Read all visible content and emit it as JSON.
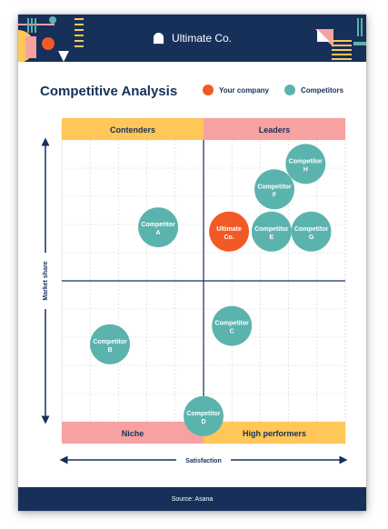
{
  "header": {
    "brand": "Ultimate Co.",
    "colors": {
      "navy": "#16305a",
      "orange": "#f15a24",
      "yellow": "#ffc658",
      "pink": "#f7a1a1",
      "teal": "#5bb3ad"
    }
  },
  "title": "Competitive Analysis",
  "legend": {
    "company_label": "Your company",
    "competitor_label": "Competitors"
  },
  "quadrants": {
    "top_left": "Contenders",
    "top_right": "Leaders",
    "bottom_left": "Niche",
    "bottom_right": "High performers"
  },
  "axes": {
    "y_label": "Market share",
    "x_label": "Satisfaction"
  },
  "bubbles": [
    {
      "id": "competitor-h",
      "line1": "Competitor",
      "line2": "H",
      "type": "competitor",
      "x": 8.6,
      "y": 8.3
    },
    {
      "id": "competitor-f",
      "line1": "Competitor",
      "line2": "F",
      "type": "competitor",
      "x": 7.5,
      "y": 6.5
    },
    {
      "id": "competitor-a",
      "line1": "Competitor",
      "line2": "A",
      "type": "competitor",
      "x": 3.4,
      "y": 3.8
    },
    {
      "id": "ultimate-co",
      "line1": "Ultimate",
      "line2": "Co.",
      "type": "company",
      "x": 5.9,
      "y": 3.5
    },
    {
      "id": "competitor-e",
      "line1": "Competitor",
      "line2": "E",
      "type": "competitor",
      "x": 7.4,
      "y": 3.5
    },
    {
      "id": "competitor-g",
      "line1": "Competitor",
      "line2": "G",
      "type": "competitor",
      "x": 8.8,
      "y": 3.5
    },
    {
      "id": "competitor-c",
      "line1": "Competitor",
      "line2": "C",
      "type": "competitor",
      "x": 6.0,
      "y": -3.2
    },
    {
      "id": "competitor-b",
      "line1": "Competitor",
      "line2": "B",
      "type": "competitor",
      "x": 1.7,
      "y": -4.5
    },
    {
      "id": "competitor-d",
      "line1": "Competitor",
      "line2": "D",
      "type": "competitor",
      "x": 5.0,
      "y": -9.6
    }
  ],
  "source": "Source: Asana"
}
